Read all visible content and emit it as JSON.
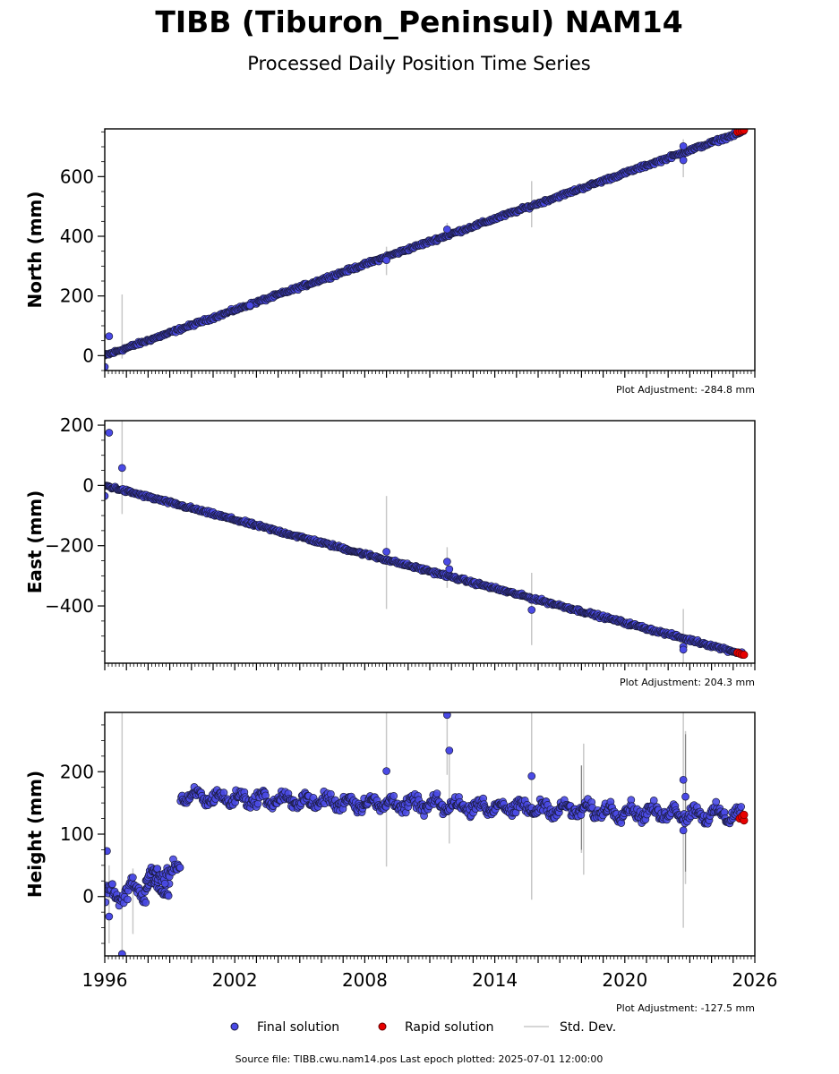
{
  "title": "TIBB (Tiburon_Peninsul) NAM14",
  "subtitle": "Processed Daily Position Time Series",
  "source_note": "Source file: TIBB.cwu.nam14.pos  Last epoch plotted: 2025-07-01 12:00:00",
  "legend": {
    "final": "Final solution",
    "rapid": "Rapid solution",
    "std": "Std. Dev."
  },
  "colors": {
    "final": "#4a4ae6",
    "rapid": "#e80000",
    "edge": "#1a1a3a",
    "std": "#c8c8c8"
  },
  "chart_data": [
    {
      "type": "scatter",
      "ylabel": "North (mm)",
      "adjustment": "Plot Adjustment: -284.8 mm",
      "xlim": [
        1996,
        2026
      ],
      "ylim": [
        -50,
        760
      ],
      "yticks": [
        "0",
        "200",
        "400",
        "600"
      ],
      "yticks_values": [
        0,
        200,
        400,
        600
      ],
      "trend": {
        "start": [
          1996.0,
          0
        ],
        "end": [
          2025.5,
          752
        ]
      },
      "noise": 4,
      "outliers": [
        [
          1996.2,
          65
        ],
        [
          1996.0,
          -38
        ],
        [
          2002.7,
          168
        ],
        [
          2009.0,
          320
        ],
        [
          2011.8,
          423
        ],
        [
          2022.7,
          702
        ],
        [
          2022.7,
          655
        ]
      ],
      "std_bars": [
        [
          1996.8,
          -10,
          205
        ],
        [
          2009.0,
          270,
          365
        ],
        [
          2011.8,
          405,
          445
        ],
        [
          2015.7,
          430,
          585
        ],
        [
          2022.7,
          598,
          725
        ]
      ],
      "rapid": [
        [
          2025.2,
          750
        ],
        [
          2025.3,
          752
        ],
        [
          2025.4,
          754
        ],
        [
          2025.5,
          756
        ]
      ]
    },
    {
      "type": "scatter",
      "ylabel": "East (mm)",
      "adjustment": "Plot Adjustment: 204.3 mm",
      "xlim": [
        1996,
        2026
      ],
      "ylim": [
        -590,
        215
      ],
      "yticks": [
        "200",
        "0",
        "−200",
        "−400"
      ],
      "yticks_values": [
        200,
        0,
        -200,
        -400
      ],
      "trend": {
        "start": [
          1996.0,
          0
        ],
        "end": [
          2025.5,
          -560
        ]
      },
      "noise": 4,
      "outliers": [
        [
          1996.2,
          175
        ],
        [
          1996.0,
          -35
        ],
        [
          1996.8,
          58
        ],
        [
          2009.0,
          -220
        ],
        [
          2011.8,
          -253
        ],
        [
          2011.9,
          -278
        ],
        [
          2015.7,
          -413
        ],
        [
          2022.7,
          -535
        ],
        [
          2022.7,
          -545
        ]
      ],
      "std_bars": [
        [
          1996.8,
          -95,
          215
        ],
        [
          2009.0,
          -410,
          -35
        ],
        [
          2011.8,
          -340,
          -205
        ],
        [
          2015.7,
          -530,
          -290
        ],
        [
          2022.7,
          -590,
          -410
        ]
      ],
      "rapid": [
        [
          2025.2,
          -555
        ],
        [
          2025.3,
          -558
        ],
        [
          2025.4,
          -561
        ],
        [
          2025.5,
          -562
        ]
      ]
    },
    {
      "type": "scatter",
      "ylabel": "Height (mm)",
      "adjustment": "Plot Adjustment: -127.5 mm",
      "xlim": [
        1996,
        2026
      ],
      "xticks": [
        "1996",
        "2002",
        "2008",
        "2014",
        "2020",
        "2026"
      ],
      "xticks_values": [
        1996,
        2002,
        2008,
        2014,
        2020,
        2026
      ],
      "ylim": [
        -95,
        295
      ],
      "yticks": [
        "0",
        "100",
        "200"
      ],
      "yticks_values": [
        0,
        100,
        200
      ],
      "segments": [
        {
          "x0": 1996.0,
          "x1": 1999.0,
          "y0": 0,
          "y1": 20,
          "season": 14,
          "noise": 9
        },
        {
          "x0": 1997.9,
          "x1": 1999.5,
          "y0": 30,
          "y1": 45,
          "season": 8,
          "noise": 7
        },
        {
          "x0": 1999.5,
          "x1": 2025.5,
          "y0": 160,
          "y1": 130,
          "season": 8,
          "noise": 7
        }
      ],
      "outliers": [
        [
          1996.1,
          73
        ],
        [
          1996.2,
          -32
        ],
        [
          1996.8,
          -92
        ],
        [
          2009.0,
          201
        ],
        [
          2011.8,
          291
        ],
        [
          2011.9,
          234
        ],
        [
          2015.7,
          193
        ],
        [
          2022.7,
          187
        ],
        [
          2022.7,
          106
        ],
        [
          2022.8,
          160
        ]
      ],
      "std_bars": [
        [
          1996.2,
          -75,
          50
        ],
        [
          1996.8,
          -95,
          295
        ],
        [
          1997.3,
          -60,
          45
        ],
        [
          2009.0,
          48,
          295
        ],
        [
          2011.8,
          195,
          295
        ],
        [
          2011.9,
          85,
          240
        ],
        [
          2015.7,
          -5,
          295
        ],
        [
          2018.0,
          70,
          210
        ],
        [
          2018.1,
          35,
          245
        ],
        [
          2022.7,
          -50,
          295
        ],
        [
          2022.8,
          20,
          265
        ]
      ],
      "rapid": [
        [
          2025.3,
          125
        ],
        [
          2025.4,
          128
        ],
        [
          2025.5,
          122
        ],
        [
          2025.5,
          131
        ]
      ]
    }
  ]
}
